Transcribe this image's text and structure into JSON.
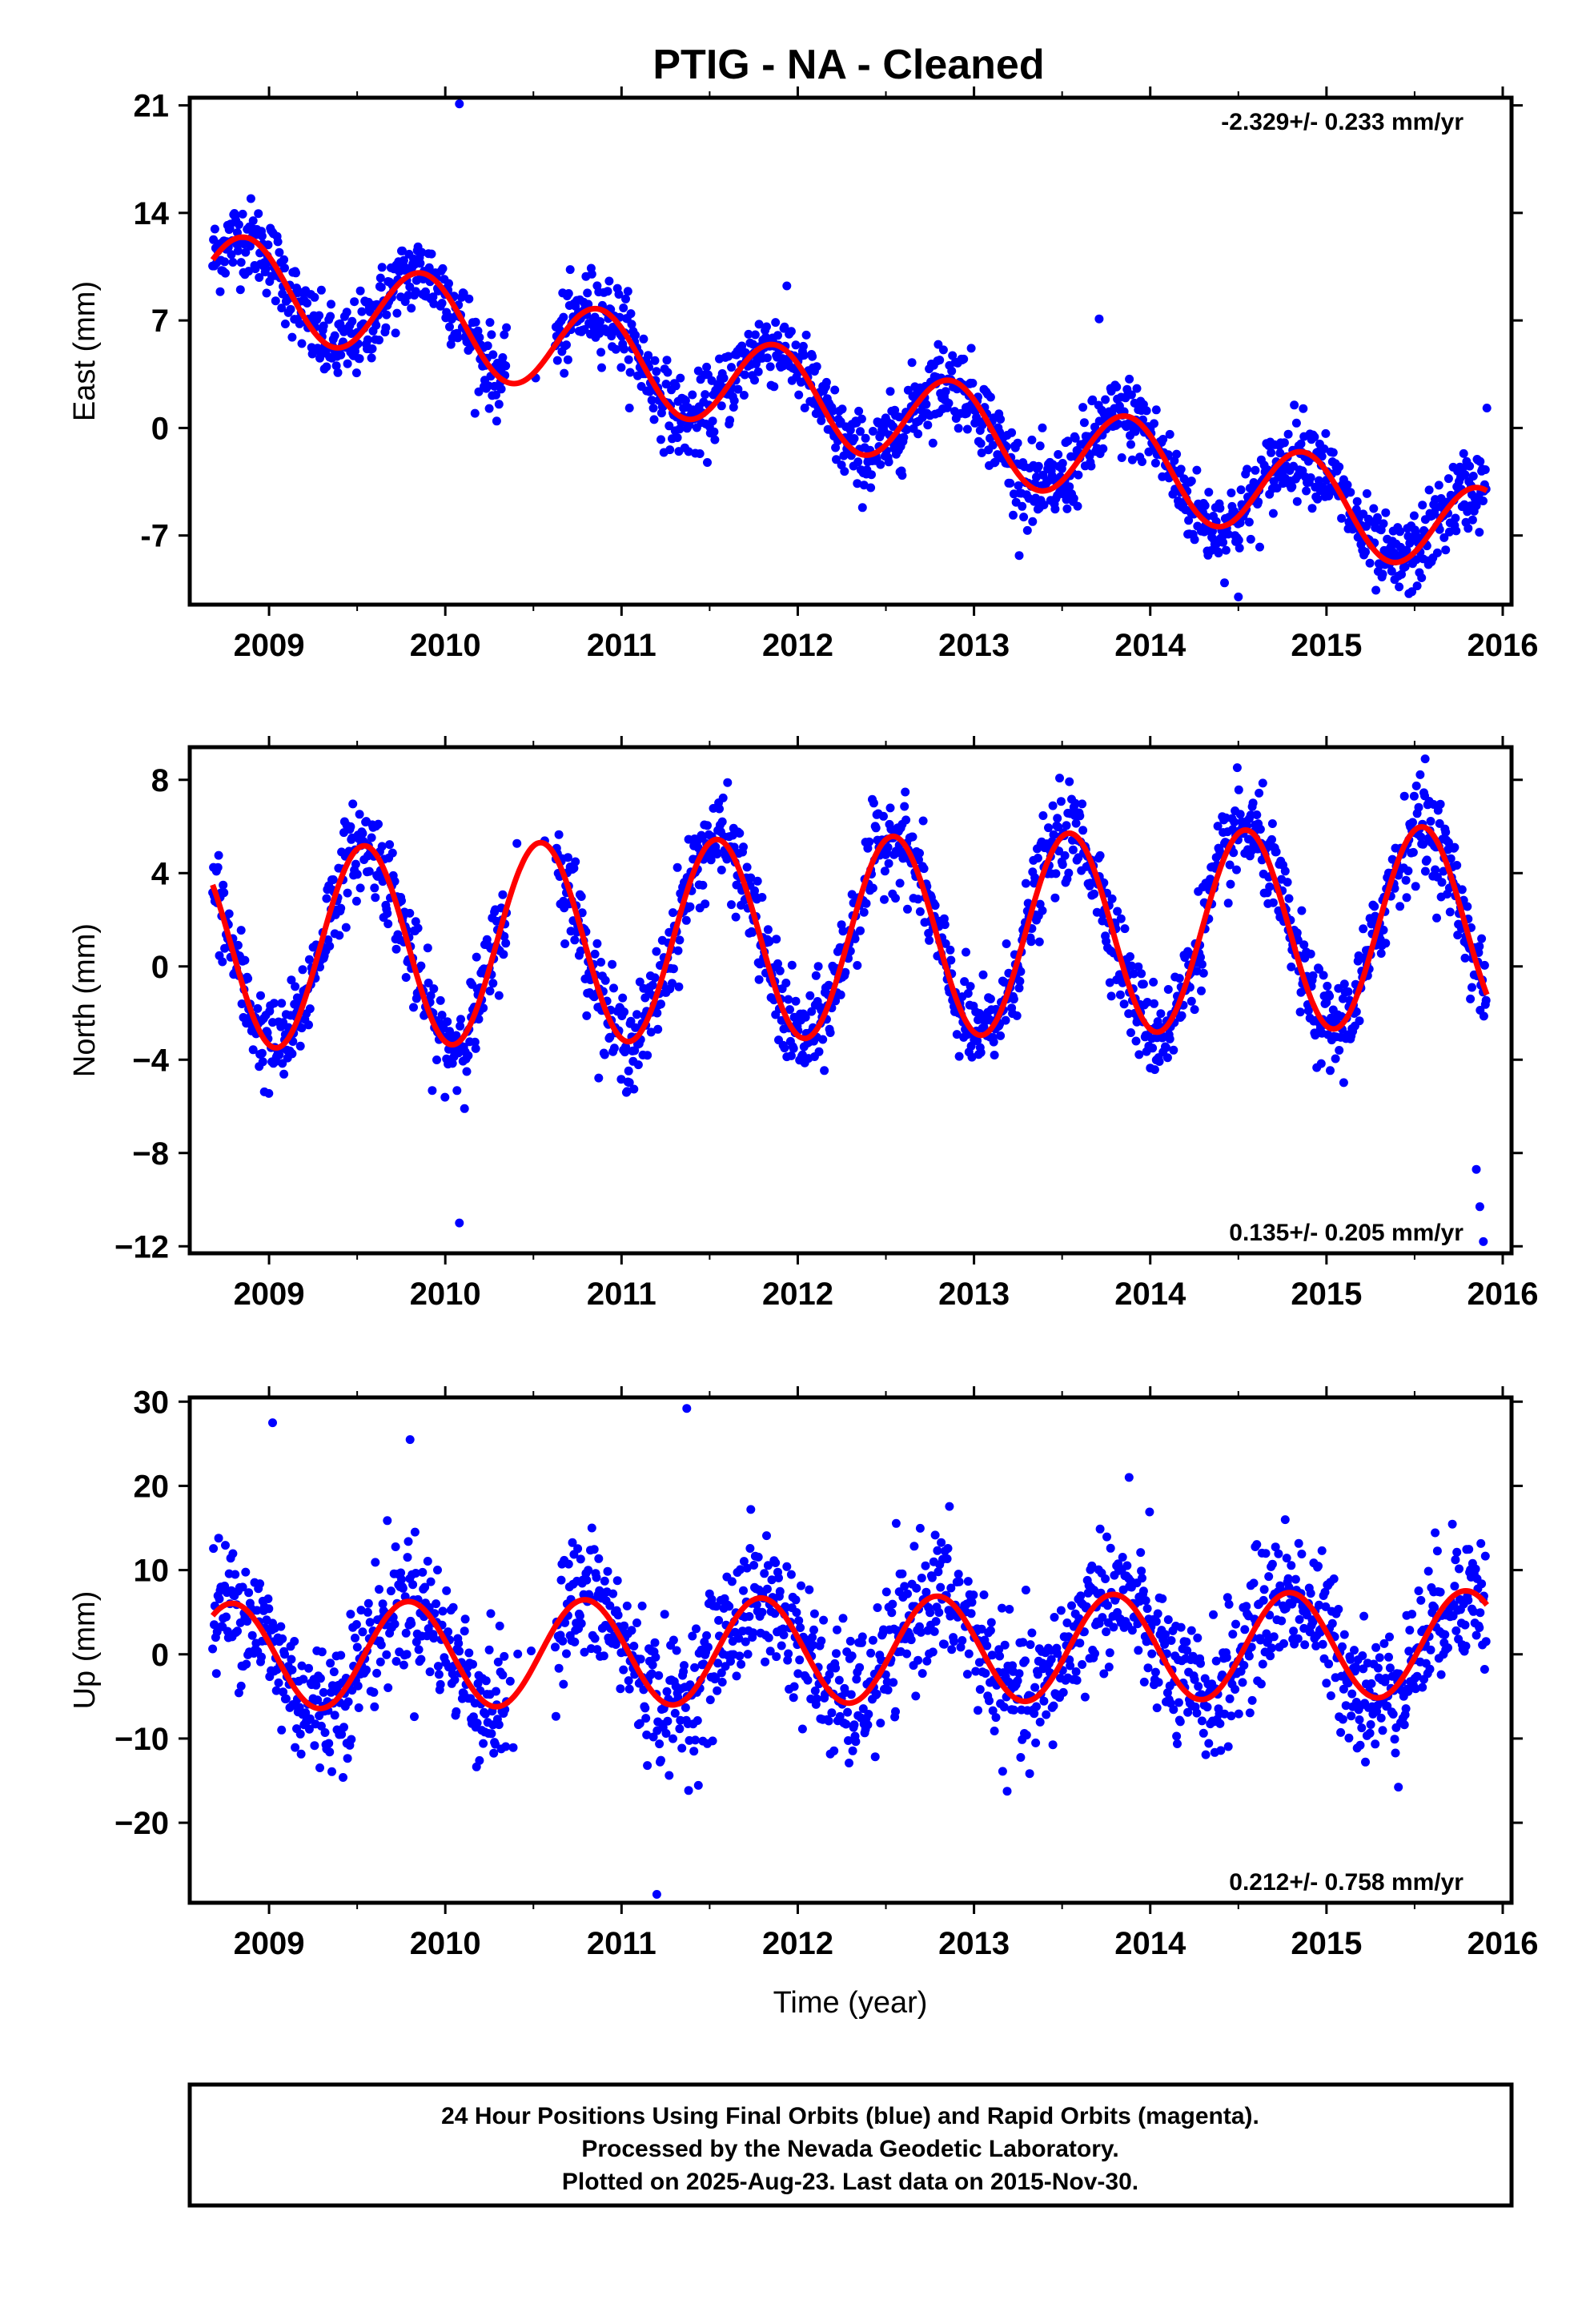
{
  "title": "PTIG  - NA - Cleaned",
  "colors": {
    "final_orbits": "#0000ff",
    "model": "#ff0000",
    "axes": "#000000"
  },
  "footer": {
    "line1": "24 Hour Positions Using Final Orbits (blue) and Rapid Orbits (magenta).",
    "line2": "Processed by the Nevada Geodetic Laboratory.",
    "line3": "Plotted on 2025-Aug-23. Last data on 2015-Nov-30."
  },
  "chart_data": [
    {
      "type": "scatter",
      "id": "east",
      "ylabel": "East (mm)",
      "xlabel": "",
      "rate": "-2.329+/- 0.233 mm/yr",
      "rate_position": "top-right",
      "xlim": [
        2008.55,
        2016.05
      ],
      "ylim": [
        -11.5,
        21.5
      ],
      "xticks": [
        "2009",
        "2010",
        "2011",
        "2012",
        "2013",
        "2014",
        "2015",
        "2016"
      ],
      "yticks": [
        "21",
        "14",
        "7",
        "0",
        "-7"
      ],
      "ytick_values": [
        21,
        14,
        7,
        0,
        -7
      ],
      "data_range": [
        2008.68,
        2015.91
      ],
      "model": {
        "intercept_at_2009": 9.1,
        "slope_mm_per_yr": -2.329,
        "seasonal_amplitude_mm": 3.0,
        "peak_fraction_of_year": 0.87
      },
      "outliers": [
        [
          2010.08,
          21.1
        ],
        [
          2013.71,
          7.1
        ],
        [
          2014.5,
          -11.0
        ],
        [
          2015.91,
          1.3
        ]
      ],
      "scatter_sigma_mm": 1.3
    },
    {
      "type": "scatter",
      "id": "north",
      "ylabel": "North (mm)",
      "xlabel": "",
      "rate": "0.135+/- 0.205 mm/yr",
      "rate_position": "bottom-right",
      "xlim": [
        2008.55,
        2016.05
      ],
      "ylim": [
        -12.3,
        9.4
      ],
      "xticks": [
        "2009",
        "2010",
        "2011",
        "2012",
        "2013",
        "2014",
        "2015",
        "2016"
      ],
      "yticks": [
        "8",
        "4",
        "0",
        "−4",
        "−8",
        "−12"
      ],
      "ytick_values": [
        8,
        4,
        0,
        -4,
        -8,
        -12
      ],
      "data_range": [
        2008.68,
        2015.91
      ],
      "model": {
        "intercept_at_2009": 0.8,
        "slope_mm_per_yr": 0.135,
        "seasonal_amplitude_mm": 4.3,
        "peak_fraction_of_year": 0.54
      },
      "outliers": [
        [
          2010.08,
          -11.0
        ],
        [
          2015.89,
          -11.8
        ],
        [
          2015.87,
          -10.3
        ],
        [
          2015.85,
          -8.7
        ],
        [
          2015.56,
          8.9
        ]
      ],
      "scatter_sigma_mm": 1.0
    },
    {
      "type": "scatter",
      "id": "up",
      "ylabel": "Up (mm)",
      "xlabel": "Time (year)",
      "rate": "0.212+/- 0.758 mm/yr",
      "rate_position": "bottom-right",
      "xlim": [
        2008.55,
        2016.05
      ],
      "ylim": [
        -29.5,
        30.5
      ],
      "xticks": [
        "2009",
        "2010",
        "2011",
        "2012",
        "2013",
        "2014",
        "2015",
        "2016"
      ],
      "yticks": [
        "30",
        "20",
        "10",
        "0",
        "−10",
        "−20"
      ],
      "ytick_values": [
        30,
        20,
        10,
        0,
        -10,
        -20
      ],
      "data_range": [
        2008.68,
        2015.91
      ],
      "model": {
        "intercept_at_2009": -0.2,
        "slope_mm_per_yr": 0.212,
        "seasonal_amplitude_mm": 6.3,
        "peak_fraction_of_year": 0.79
      },
      "outliers": [
        [
          2009.02,
          27.5
        ],
        [
          2009.8,
          25.5
        ],
        [
          2011.37,
          29.2
        ],
        [
          2011.2,
          -28.5
        ],
        [
          2013.88,
          21.0
        ]
      ],
      "scatter_sigma_mm": 4.0
    }
  ]
}
